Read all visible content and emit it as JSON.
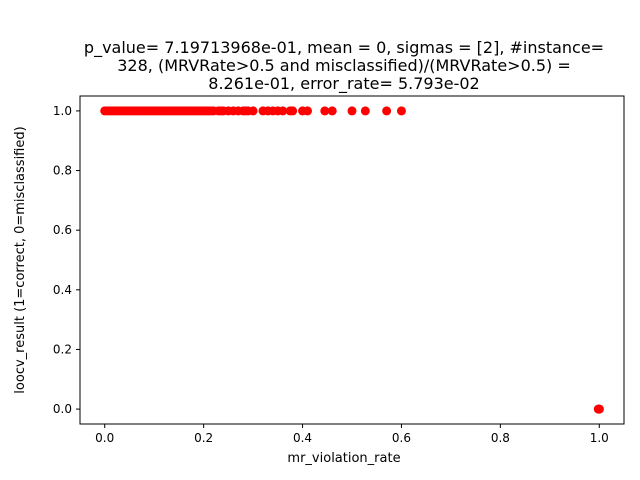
{
  "chart_data": {
    "type": "scatter",
    "title_lines": [
      "p_value= 7.19713968e-01, mean = 0, sigmas = [2], #instance=",
      "328, (MRVRate>0.5 and misclassified)/(MRVRate>0.5) =",
      "8.261e-01, error_rate= 5.793e-02"
    ],
    "xlabel": "mr_violation_rate",
    "ylabel": "loocv_result (1=correct, 0=misclassified)",
    "xlim": [
      -0.05,
      1.05
    ],
    "ylim": [
      -0.05,
      1.05
    ],
    "xticks": [
      0.0,
      0.2,
      0.4,
      0.6,
      0.8,
      1.0
    ],
    "xtick_labels": [
      "0.0",
      "0.2",
      "0.4",
      "0.6",
      "0.8",
      "1.0"
    ],
    "yticks": [
      0.0,
      0.2,
      0.4,
      0.6,
      0.8,
      1.0
    ],
    "ytick_labels": [
      "0.0",
      "0.2",
      "0.4",
      "0.6",
      "0.8",
      "1.0"
    ],
    "grid": false,
    "marker_color": "#ff0000",
    "series": [
      {
        "values_note": "",
        "points": [
          [
            0.0,
            1
          ],
          [
            0.005,
            1
          ],
          [
            0.01,
            1
          ],
          [
            0.015,
            1
          ],
          [
            0.02,
            1
          ],
          [
            0.025,
            1
          ],
          [
            0.03,
            1
          ],
          [
            0.035,
            1
          ],
          [
            0.04,
            1
          ],
          [
            0.045,
            1
          ],
          [
            0.05,
            1
          ],
          [
            0.055,
            1
          ],
          [
            0.06,
            1
          ],
          [
            0.065,
            1
          ],
          [
            0.07,
            1
          ],
          [
            0.075,
            1
          ],
          [
            0.08,
            1
          ],
          [
            0.085,
            1
          ],
          [
            0.09,
            1
          ],
          [
            0.095,
            1
          ],
          [
            0.1,
            1
          ],
          [
            0.105,
            1
          ],
          [
            0.11,
            1
          ],
          [
            0.115,
            1
          ],
          [
            0.12,
            1
          ],
          [
            0.125,
            1
          ],
          [
            0.13,
            1
          ],
          [
            0.135,
            1
          ],
          [
            0.14,
            1
          ],
          [
            0.145,
            1
          ],
          [
            0.15,
            1
          ],
          [
            0.155,
            1
          ],
          [
            0.16,
            1
          ],
          [
            0.165,
            1
          ],
          [
            0.17,
            1
          ],
          [
            0.175,
            1
          ],
          [
            0.18,
            1
          ],
          [
            0.185,
            1
          ],
          [
            0.19,
            1
          ],
          [
            0.195,
            1
          ],
          [
            0.2,
            1
          ],
          [
            0.205,
            1
          ],
          [
            0.21,
            1
          ],
          [
            0.215,
            1
          ],
          [
            0.22,
            1
          ],
          [
            0.23,
            1
          ],
          [
            0.235,
            1
          ],
          [
            0.24,
            1
          ],
          [
            0.25,
            1
          ],
          [
            0.26,
            1
          ],
          [
            0.27,
            1
          ],
          [
            0.28,
            1
          ],
          [
            0.285,
            1
          ],
          [
            0.29,
            1
          ],
          [
            0.3,
            1
          ],
          [
            0.32,
            1
          ],
          [
            0.33,
            1
          ],
          [
            0.34,
            1
          ],
          [
            0.35,
            1
          ],
          [
            0.36,
            1
          ],
          [
            0.375,
            1
          ],
          [
            0.38,
            1
          ],
          [
            0.4,
            1
          ],
          [
            0.41,
            1
          ],
          [
            0.445,
            1
          ],
          [
            0.46,
            1
          ],
          [
            0.5,
            1
          ],
          [
            0.527,
            1
          ],
          [
            0.57,
            1
          ],
          [
            0.6,
            1
          ],
          [
            1.0,
            0
          ],
          [
            0.999,
            0
          ],
          [
            0.998,
            0
          ],
          [
            1.0,
            0
          ]
        ]
      }
    ]
  }
}
